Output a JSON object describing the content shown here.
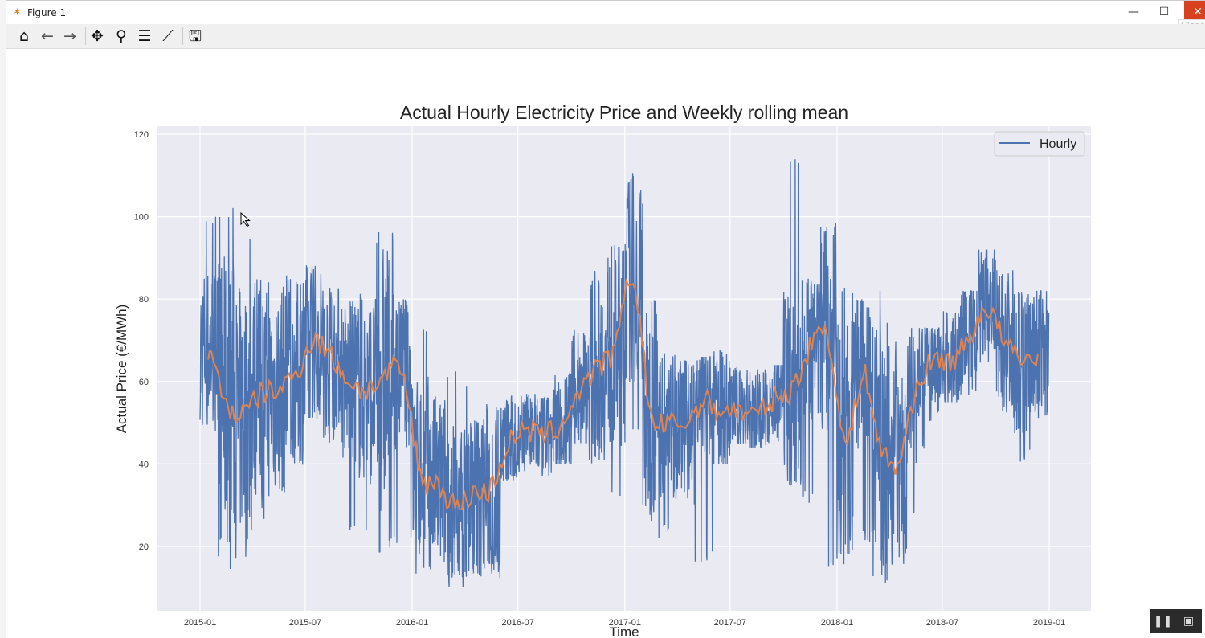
{
  "window": {
    "title": "Figure 1",
    "close_tooltip": "Close"
  },
  "toolbar": {
    "icons": [
      "home-icon",
      "back-icon",
      "forward-icon",
      "pan-icon",
      "zoom-icon",
      "configure-subplots-icon",
      "edit-axis-icon",
      "save-icon"
    ]
  },
  "colors": {
    "hourly": "#4c72b0",
    "rolling": "#dd8452",
    "axes_bg": "#eaeaf2",
    "grid": "#ffffff"
  },
  "chart_data": {
    "type": "line",
    "title": "Actual Hourly Electricity Price and Weekly rolling mean",
    "xlabel": "Time",
    "ylabel": "Actual Price (€/MWh)",
    "xlim": [
      "2014-12-01",
      "2019-02-01"
    ],
    "ylim": [
      4.4,
      122
    ],
    "x_ticks": [
      "2015-01",
      "2015-07",
      "2016-01",
      "2016-07",
      "2017-01",
      "2017-07",
      "2018-01",
      "2018-07",
      "2019-01"
    ],
    "y_ticks": [
      20,
      40,
      60,
      80,
      100,
      120
    ],
    "grid": true,
    "legend": {
      "position": "top-right",
      "entries": [
        "Hourly"
      ]
    },
    "months": [
      "2015-01",
      "2015-02",
      "2015-03",
      "2015-04",
      "2015-05",
      "2015-06",
      "2015-07",
      "2015-08",
      "2015-09",
      "2015-10",
      "2015-11",
      "2015-12",
      "2016-01",
      "2016-02",
      "2016-03",
      "2016-04",
      "2016-05",
      "2016-06",
      "2016-07",
      "2016-08",
      "2016-09",
      "2016-10",
      "2016-11",
      "2016-12",
      "2017-01",
      "2017-02",
      "2017-03",
      "2017-04",
      "2017-05",
      "2017-06",
      "2017-07",
      "2017-08",
      "2017-09",
      "2017-10",
      "2017-11",
      "2017-12",
      "2018-01",
      "2018-02",
      "2018-03",
      "2018-04",
      "2018-05",
      "2018-06",
      "2018-07",
      "2018-08",
      "2018-09",
      "2018-10",
      "2018-11",
      "2018-12"
    ],
    "series": [
      {
        "name": "Hourly",
        "kind": "monthly range of hourly price",
        "low": [
          47,
          14,
          17,
          26,
          30,
          39,
          50,
          45,
          23,
          22,
          18,
          20,
          13,
          12,
          10,
          12,
          12,
          36,
          38,
          37,
          40,
          45,
          40,
          30,
          45,
          21,
          23,
          30,
          15,
          40,
          45,
          44,
          45,
          33,
          30,
          12,
          12,
          20,
          11,
          14,
          28,
          50,
          55,
          55,
          38,
          45,
          40,
          49
        ],
        "high": [
          100,
          103,
          97,
          85,
          88,
          86,
          89,
          83,
          80,
          82,
          99,
          80,
          75,
          72,
          63,
          60,
          57,
          60,
          57,
          56,
          62,
          74,
          87,
          95,
          113,
          80,
          68,
          65,
          66,
          68,
          65,
          63,
          64,
          117,
          85,
          100,
          85,
          80,
          82,
          70,
          73,
          73,
          78,
          82,
          92,
          87,
          82,
          82
        ]
      },
      {
        "kind": "weekly rolling mean",
        "values": [
          68,
          55,
          52,
          57,
          58,
          62,
          70,
          66,
          60,
          58,
          61,
          62,
          38,
          35,
          30,
          33,
          34,
          45,
          48,
          47,
          50,
          58,
          63,
          68,
          85,
          52,
          50,
          50,
          55,
          53,
          53,
          52,
          56,
          58,
          68,
          72,
          45,
          62,
          45,
          40,
          57,
          65,
          65,
          70,
          78,
          70,
          65,
          67
        ]
      }
    ]
  }
}
